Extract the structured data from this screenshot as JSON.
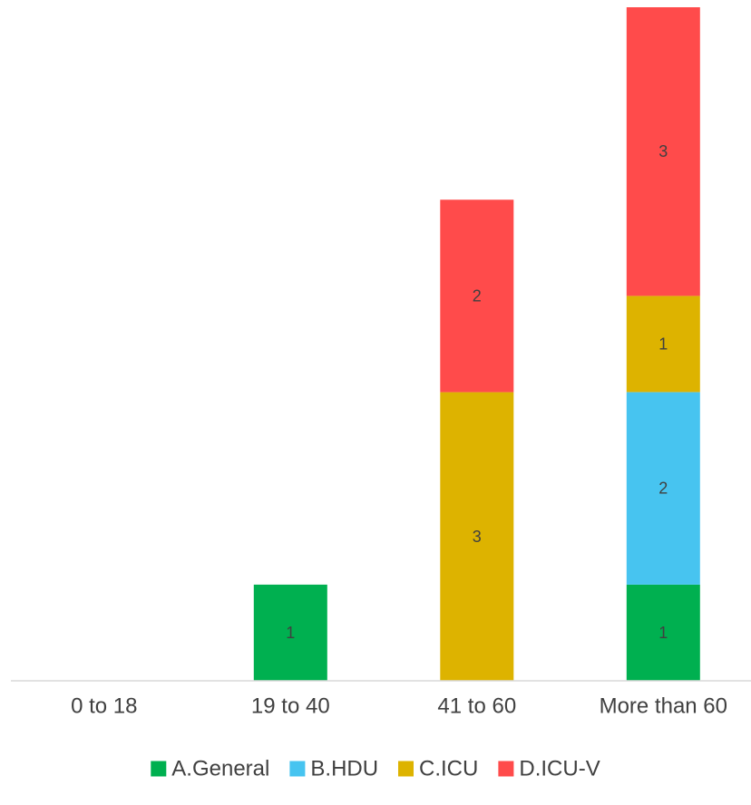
{
  "chart_data": {
    "type": "bar",
    "stacked": true,
    "title": "",
    "xlabel": "",
    "ylabel": "",
    "categories": [
      "0 to 18",
      "19 to 40",
      "41 to 60",
      "More than 60"
    ],
    "series": [
      {
        "name": "A.General",
        "color": "#00B050",
        "values": [
          0,
          1,
          0,
          1
        ]
      },
      {
        "name": "B.HDU",
        "color": "#47C4F0",
        "values": [
          0,
          0,
          0,
          2
        ]
      },
      {
        "name": "C.ICU",
        "color": "#DDB300",
        "values": [
          0,
          0,
          3,
          1
        ]
      },
      {
        "name": "D.ICU-V",
        "color": "#FF4B4B",
        "values": [
          0,
          0,
          2,
          3
        ]
      }
    ],
    "ylim": [
      0,
      7
    ],
    "grid": false,
    "legend_position": "bottom",
    "data_labels": true
  }
}
